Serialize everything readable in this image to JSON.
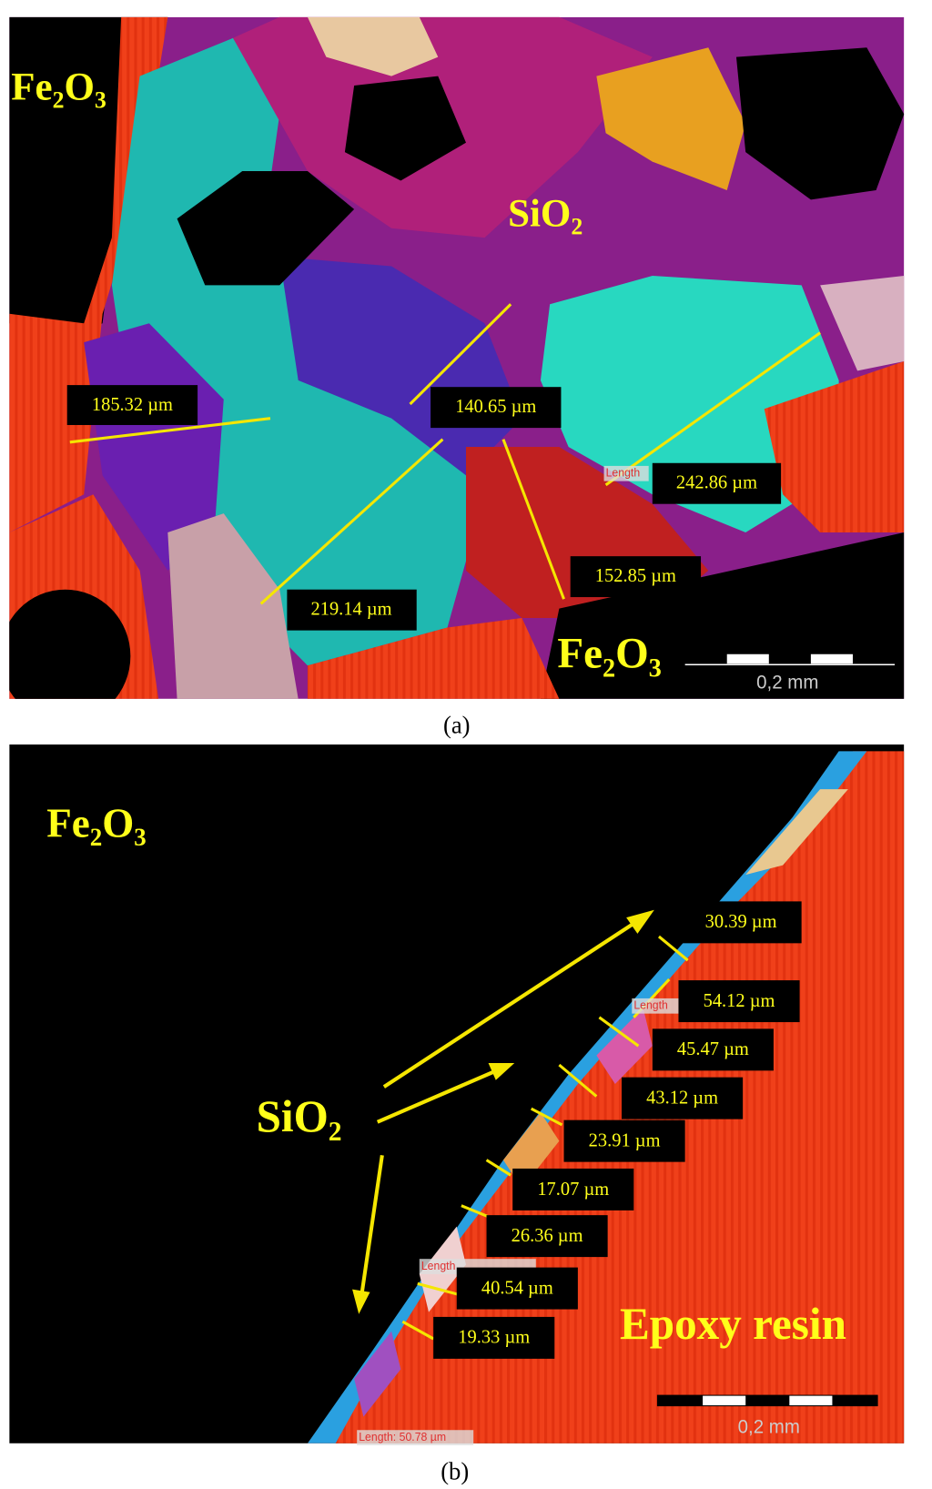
{
  "panel_a": {
    "labels": [
      "Fe₂O₃",
      "SiO₂",
      "Fe₂O₃"
    ],
    "measurements": [
      "185.32 µm",
      "140.65 µm",
      "242.86 µm",
      "152.85 µm",
      "219.14 µm"
    ],
    "length_tag": "Length",
    "scale_bar": "0,2 mm",
    "caption": "(a)"
  },
  "panel_b": {
    "labels": [
      "Fe₂O₃",
      "SiO₂",
      "Epoxy resin"
    ],
    "measurements": [
      "30.39 µm",
      "54.12 µm",
      "45.47 µm",
      "43.12 µm",
      "23.91 µm",
      "17.07 µm",
      "26.36 µm",
      "40.54 µm",
      "19.33 µm"
    ],
    "length_tags": [
      "Length",
      "Length",
      "Length: 50.78 µm"
    ],
    "scale_bar": "0,2 mm",
    "caption": "(b)"
  }
}
